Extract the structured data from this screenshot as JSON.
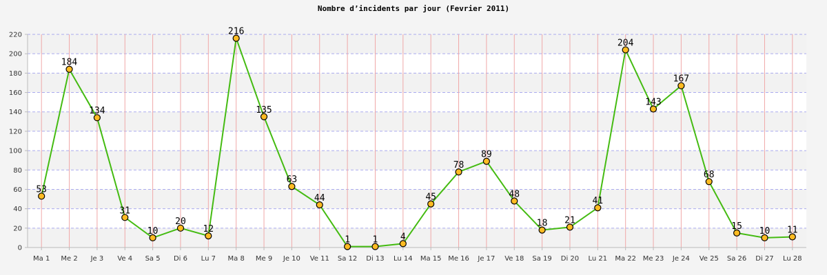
{
  "chart_data": {
    "type": "line",
    "title": "Nombre d’incidents par jour (Fevrier 2011)",
    "xlabel": "",
    "ylabel": "",
    "ylim": [
      0,
      220
    ],
    "y_ticks": [
      0,
      20,
      40,
      60,
      80,
      100,
      120,
      140,
      160,
      180,
      200,
      220
    ],
    "grid": true,
    "categories": [
      "Ma 1",
      "Me 2",
      "Je 3",
      "Ve 4",
      "Sa 5",
      "Di 6",
      "Lu 7",
      "Ma 8",
      "Me 9",
      "Je 10",
      "Ve 11",
      "Sa 12",
      "Di 13",
      "Lu 14",
      "Ma 15",
      "Me 16",
      "Je 17",
      "Ve 18",
      "Sa 19",
      "Di 20",
      "Lu 21",
      "Ma 22",
      "Me 23",
      "Je 24",
      "Ve 25",
      "Sa 26",
      "Di 27",
      "Lu 28"
    ],
    "series": [
      {
        "values": [
          53,
          184,
          134,
          31,
          10,
          20,
          12,
          216,
          135,
          63,
          44,
          1,
          1,
          4,
          45,
          78,
          89,
          48,
          18,
          21,
          41,
          204,
          143,
          167,
          68,
          15,
          10,
          11
        ],
        "line_color": "#44bb11",
        "marker_color": "#ffbb22"
      }
    ],
    "colors": {
      "background": "#f4f4f4",
      "plot_band_light": "#ffffff",
      "plot_band_dark": "#f2f2f2",
      "vertical_grid": "#f0a8a8",
      "horizontal_grid": "#aaaaee",
      "axis": "#bbbbbb"
    }
  }
}
